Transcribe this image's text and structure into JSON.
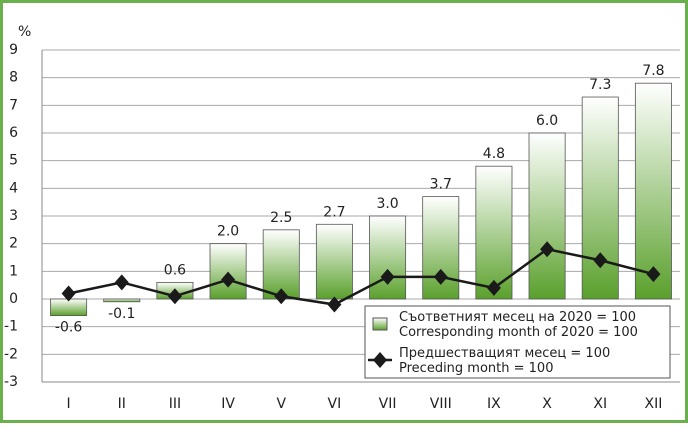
{
  "chart_data": {
    "type": "bar_line",
    "ylabel": "%",
    "categories": [
      "I",
      "II",
      "III",
      "IV",
      "V",
      "VI",
      "VII",
      "VIII",
      "IX",
      "X",
      "XI",
      "XII"
    ],
    "series": [
      {
        "name": "Съответният месец на 2020 = 100\nCorresponding month of 2020 = 100",
        "type": "bar",
        "color": "#5aa02c",
        "values": [
          -0.6,
          -0.1,
          0.6,
          2.0,
          2.5,
          2.7,
          3.0,
          3.7,
          4.8,
          6.0,
          7.3,
          7.8
        ],
        "value_labels": [
          "-0.6",
          "-0.1",
          "0.6",
          "2.0",
          "2.5",
          "2.7",
          "3.0",
          "3.7",
          "4.8",
          "6.0",
          "7.3",
          "7.8"
        ]
      },
      {
        "name": "Предшестващият месец = 100\nPreceding month = 100",
        "type": "line",
        "color": "#1a1a1a",
        "values": [
          0.2,
          0.6,
          0.1,
          0.7,
          0.1,
          -0.2,
          0.8,
          0.8,
          0.4,
          1.8,
          1.4,
          0.9
        ]
      }
    ],
    "ylim": [
      -3,
      9
    ],
    "yticks": [
      -3,
      -2,
      -1,
      0,
      1,
      2,
      3,
      4,
      5,
      6,
      7,
      8,
      9
    ],
    "grid": true,
    "legend": "lower right"
  }
}
